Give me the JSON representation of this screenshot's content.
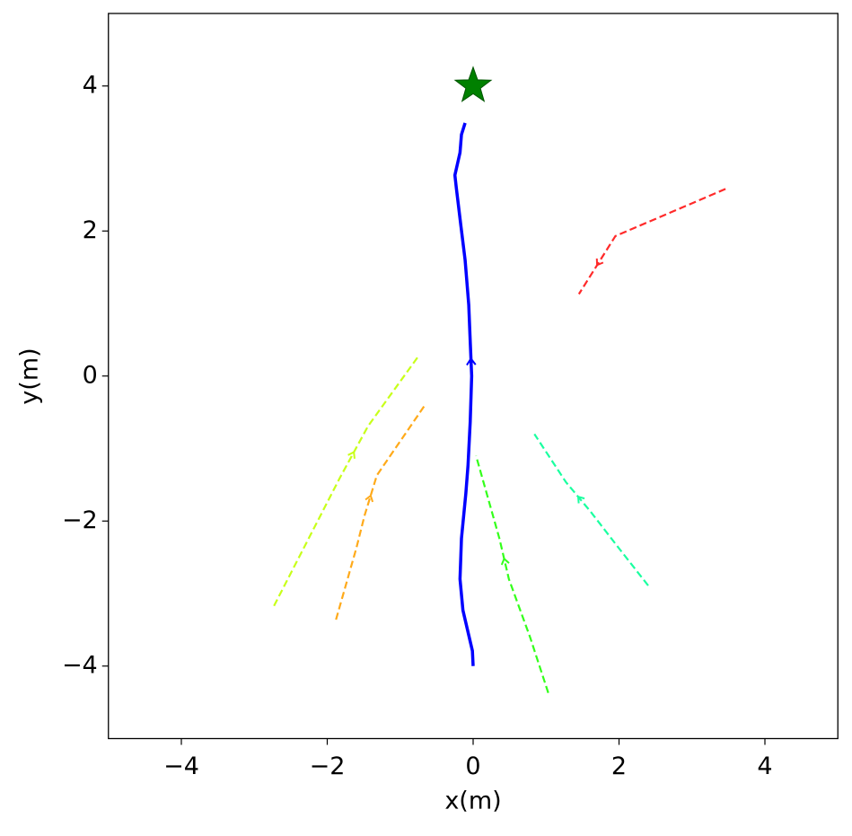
{
  "chart_data": {
    "type": "line",
    "xlabel": "x(m)",
    "ylabel": "y(m)",
    "xlim": [
      -5,
      5
    ],
    "ylim": [
      -5,
      5
    ],
    "xticks": [
      {
        "value": -4,
        "label": "−4"
      },
      {
        "value": -2,
        "label": "−2"
      },
      0,
      2,
      4
    ],
    "yticks": [
      {
        "value": -4,
        "label": "−4"
      },
      {
        "value": -2,
        "label": "−2"
      },
      0,
      2,
      4
    ],
    "series": [
      {
        "color": "#0000ff",
        "linestyle": "solid",
        "x": [
          0,
          -0.01,
          -0.14,
          -0.18,
          -0.16,
          -0.1,
          -0.07,
          -0.04,
          -0.02,
          -0.04,
          -0.06,
          -0.11,
          -0.17,
          -0.23,
          -0.25,
          -0.18,
          -0.16,
          -0.11
        ],
        "y": [
          -4.0,
          -3.79,
          -3.23,
          -2.8,
          -2.24,
          -1.62,
          -1.23,
          -0.63,
          0,
          0.48,
          0.98,
          1.6,
          2.09,
          2.59,
          2.77,
          3.08,
          3.33,
          3.49
        ]
      },
      {
        "color": "#ff2a2a",
        "linestyle": "dashed",
        "x": [
          3.46,
          1.95,
          1.45
        ],
        "y": [
          2.58,
          1.93,
          1.13
        ]
      },
      {
        "color": "#c8ff1a",
        "linestyle": "dashed",
        "x": [
          -2.73,
          -1.83,
          -1.44,
          -0.76
        ],
        "y": [
          -3.17,
          -1.41,
          -0.69,
          0.26
        ]
      },
      {
        "color": "#ffaa1a",
        "linestyle": "dashed",
        "x": [
          -1.88,
          -1.6,
          -1.49,
          -1.32,
          -0.66
        ],
        "y": [
          -3.36,
          -2.37,
          -1.93,
          -1.37,
          -0.4
        ]
      },
      {
        "color": "#33ff1a",
        "linestyle": "dashed",
        "x": [
          1.03,
          0.78,
          0.49,
          0.36,
          0.04
        ],
        "y": [
          -4.37,
          -3.6,
          -2.8,
          -2.24,
          -1.1
        ]
      },
      {
        "color": "#1affa0",
        "linestyle": "dashed",
        "x": [
          2.4,
          2.01,
          1.61,
          1.27,
          0.84
        ],
        "y": [
          -2.89,
          -2.39,
          -1.87,
          -1.46,
          -0.8
        ]
      }
    ],
    "goal": {
      "x": 0,
      "y": 4,
      "color": "#008000"
    }
  }
}
